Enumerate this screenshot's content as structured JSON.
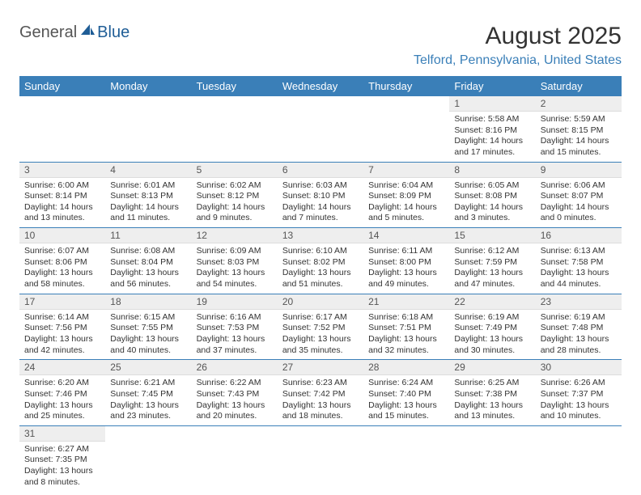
{
  "logo": {
    "text1": "General",
    "text2": "Blue",
    "sail_color": "#1f5d96"
  },
  "title": {
    "month": "August 2025",
    "location": "Telford, Pennsylvania, United States"
  },
  "colors": {
    "brand": "#3a7fb8",
    "header_bg": "#3a7fb8",
    "header_fg": "#ffffff",
    "daynum_bg": "#eeeeee",
    "border": "#3a7fb8",
    "text": "#333333"
  },
  "weekdays": [
    "Sunday",
    "Monday",
    "Tuesday",
    "Wednesday",
    "Thursday",
    "Friday",
    "Saturday"
  ],
  "first_weekday_index": 5,
  "days": [
    {
      "n": 1,
      "sr": "5:58 AM",
      "ss": "8:16 PM",
      "dl": "14 hours and 17 minutes."
    },
    {
      "n": 2,
      "sr": "5:59 AM",
      "ss": "8:15 PM",
      "dl": "14 hours and 15 minutes."
    },
    {
      "n": 3,
      "sr": "6:00 AM",
      "ss": "8:14 PM",
      "dl": "14 hours and 13 minutes."
    },
    {
      "n": 4,
      "sr": "6:01 AM",
      "ss": "8:13 PM",
      "dl": "14 hours and 11 minutes."
    },
    {
      "n": 5,
      "sr": "6:02 AM",
      "ss": "8:12 PM",
      "dl": "14 hours and 9 minutes."
    },
    {
      "n": 6,
      "sr": "6:03 AM",
      "ss": "8:10 PM",
      "dl": "14 hours and 7 minutes."
    },
    {
      "n": 7,
      "sr": "6:04 AM",
      "ss": "8:09 PM",
      "dl": "14 hours and 5 minutes."
    },
    {
      "n": 8,
      "sr": "6:05 AM",
      "ss": "8:08 PM",
      "dl": "14 hours and 3 minutes."
    },
    {
      "n": 9,
      "sr": "6:06 AM",
      "ss": "8:07 PM",
      "dl": "14 hours and 0 minutes."
    },
    {
      "n": 10,
      "sr": "6:07 AM",
      "ss": "8:06 PM",
      "dl": "13 hours and 58 minutes."
    },
    {
      "n": 11,
      "sr": "6:08 AM",
      "ss": "8:04 PM",
      "dl": "13 hours and 56 minutes."
    },
    {
      "n": 12,
      "sr": "6:09 AM",
      "ss": "8:03 PM",
      "dl": "13 hours and 54 minutes."
    },
    {
      "n": 13,
      "sr": "6:10 AM",
      "ss": "8:02 PM",
      "dl": "13 hours and 51 minutes."
    },
    {
      "n": 14,
      "sr": "6:11 AM",
      "ss": "8:00 PM",
      "dl": "13 hours and 49 minutes."
    },
    {
      "n": 15,
      "sr": "6:12 AM",
      "ss": "7:59 PM",
      "dl": "13 hours and 47 minutes."
    },
    {
      "n": 16,
      "sr": "6:13 AM",
      "ss": "7:58 PM",
      "dl": "13 hours and 44 minutes."
    },
    {
      "n": 17,
      "sr": "6:14 AM",
      "ss": "7:56 PM",
      "dl": "13 hours and 42 minutes."
    },
    {
      "n": 18,
      "sr": "6:15 AM",
      "ss": "7:55 PM",
      "dl": "13 hours and 40 minutes."
    },
    {
      "n": 19,
      "sr": "6:16 AM",
      "ss": "7:53 PM",
      "dl": "13 hours and 37 minutes."
    },
    {
      "n": 20,
      "sr": "6:17 AM",
      "ss": "7:52 PM",
      "dl": "13 hours and 35 minutes."
    },
    {
      "n": 21,
      "sr": "6:18 AM",
      "ss": "7:51 PM",
      "dl": "13 hours and 32 minutes."
    },
    {
      "n": 22,
      "sr": "6:19 AM",
      "ss": "7:49 PM",
      "dl": "13 hours and 30 minutes."
    },
    {
      "n": 23,
      "sr": "6:19 AM",
      "ss": "7:48 PM",
      "dl": "13 hours and 28 minutes."
    },
    {
      "n": 24,
      "sr": "6:20 AM",
      "ss": "7:46 PM",
      "dl": "13 hours and 25 minutes."
    },
    {
      "n": 25,
      "sr": "6:21 AM",
      "ss": "7:45 PM",
      "dl": "13 hours and 23 minutes."
    },
    {
      "n": 26,
      "sr": "6:22 AM",
      "ss": "7:43 PM",
      "dl": "13 hours and 20 minutes."
    },
    {
      "n": 27,
      "sr": "6:23 AM",
      "ss": "7:42 PM",
      "dl": "13 hours and 18 minutes."
    },
    {
      "n": 28,
      "sr": "6:24 AM",
      "ss": "7:40 PM",
      "dl": "13 hours and 15 minutes."
    },
    {
      "n": 29,
      "sr": "6:25 AM",
      "ss": "7:38 PM",
      "dl": "13 hours and 13 minutes."
    },
    {
      "n": 30,
      "sr": "6:26 AM",
      "ss": "7:37 PM",
      "dl": "13 hours and 10 minutes."
    },
    {
      "n": 31,
      "sr": "6:27 AM",
      "ss": "7:35 PM",
      "dl": "13 hours and 8 minutes."
    }
  ],
  "labels": {
    "sunrise": "Sunrise:",
    "sunset": "Sunset:",
    "daylight": "Daylight:"
  }
}
